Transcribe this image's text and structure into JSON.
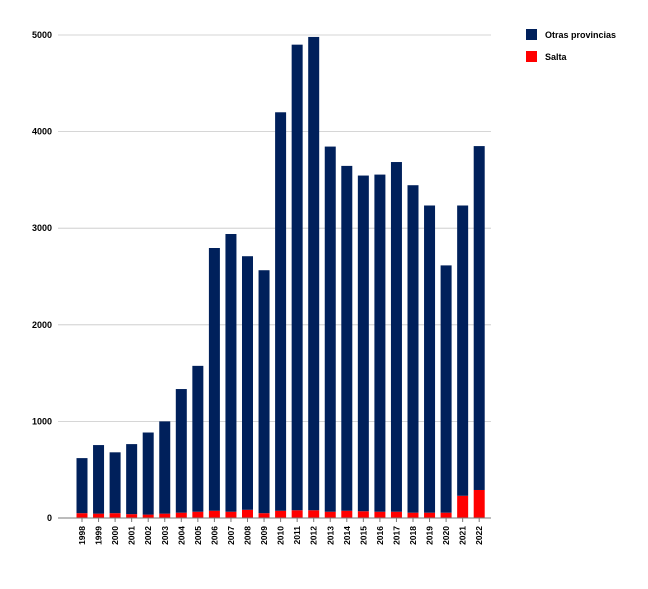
{
  "chart_data": {
    "type": "bar",
    "stacked": true,
    "title": "",
    "xlabel": "",
    "ylabel": "",
    "ylim": [
      0,
      5000
    ],
    "yticks": [
      0,
      1000,
      2000,
      3000,
      4000,
      5000
    ],
    "grid": true,
    "legend_position": "top-right",
    "categories": [
      "1998",
      "1999",
      "2000",
      "2001",
      "2002",
      "2003",
      "2004",
      "2005",
      "2006",
      "2007",
      "2008",
      "2009",
      "2010",
      "2011",
      "2012",
      "2013",
      "2014",
      "2015",
      "2016",
      "2017",
      "2018",
      "2019",
      "2020",
      "2021",
      "2022"
    ],
    "series": [
      {
        "name": "Salta",
        "color": "#ff0000",
        "values": [
          50,
          45,
          50,
          40,
          35,
          45,
          55,
          65,
          75,
          65,
          85,
          50,
          75,
          80,
          80,
          65,
          75,
          70,
          65,
          65,
          55,
          55,
          55,
          230,
          290
        ]
      },
      {
        "name": "Otras provincias",
        "color": "#00205b",
        "values": [
          570,
          710,
          630,
          725,
          850,
          955,
          1280,
          1510,
          2720,
          2875,
          2625,
          2515,
          4125,
          4820,
          4900,
          3780,
          3570,
          3475,
          3490,
          3620,
          3390,
          3180,
          2560,
          3005,
          3560
        ]
      }
    ]
  }
}
